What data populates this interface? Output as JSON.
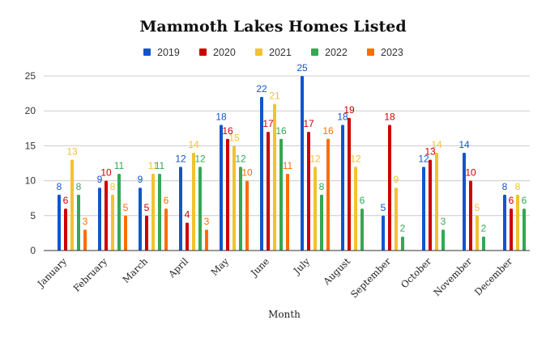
{
  "chart_data": {
    "type": "bar",
    "title": "Mammoth Lakes Homes Listed",
    "xlabel": "Month",
    "ylabel": "",
    "ylim": [
      0,
      25
    ],
    "yticks": [
      0,
      5,
      10,
      15,
      20,
      25
    ],
    "grid": true,
    "legend_position": "top",
    "categories": [
      "January",
      "February",
      "March",
      "April",
      "May",
      "June",
      "July",
      "August",
      "September",
      "October",
      "November",
      "December"
    ],
    "series": [
      {
        "name": "2019",
        "color": "#1155cc",
        "values": [
          8,
          9,
          9,
          12,
          18,
          22,
          25,
          18,
          5,
          12,
          14,
          8
        ]
      },
      {
        "name": "2020",
        "color": "#cc0000",
        "values": [
          6,
          10,
          5,
          4,
          16,
          17,
          17,
          19,
          18,
          13,
          10,
          6
        ]
      },
      {
        "name": "2021",
        "color": "#f1c232",
        "values": [
          13,
          8,
          11,
          14,
          15,
          21,
          12,
          12,
          9,
          14,
          5,
          8
        ]
      },
      {
        "name": "2022",
        "color": "#34a853",
        "values": [
          8,
          11,
          11,
          12,
          12,
          16,
          8,
          6,
          2,
          3,
          2,
          6
        ]
      },
      {
        "name": "2023",
        "color": "#ff6d01",
        "values": [
          3,
          5,
          6,
          3,
          10,
          11,
          16,
          null,
          null,
          null,
          null,
          null
        ]
      }
    ]
  }
}
